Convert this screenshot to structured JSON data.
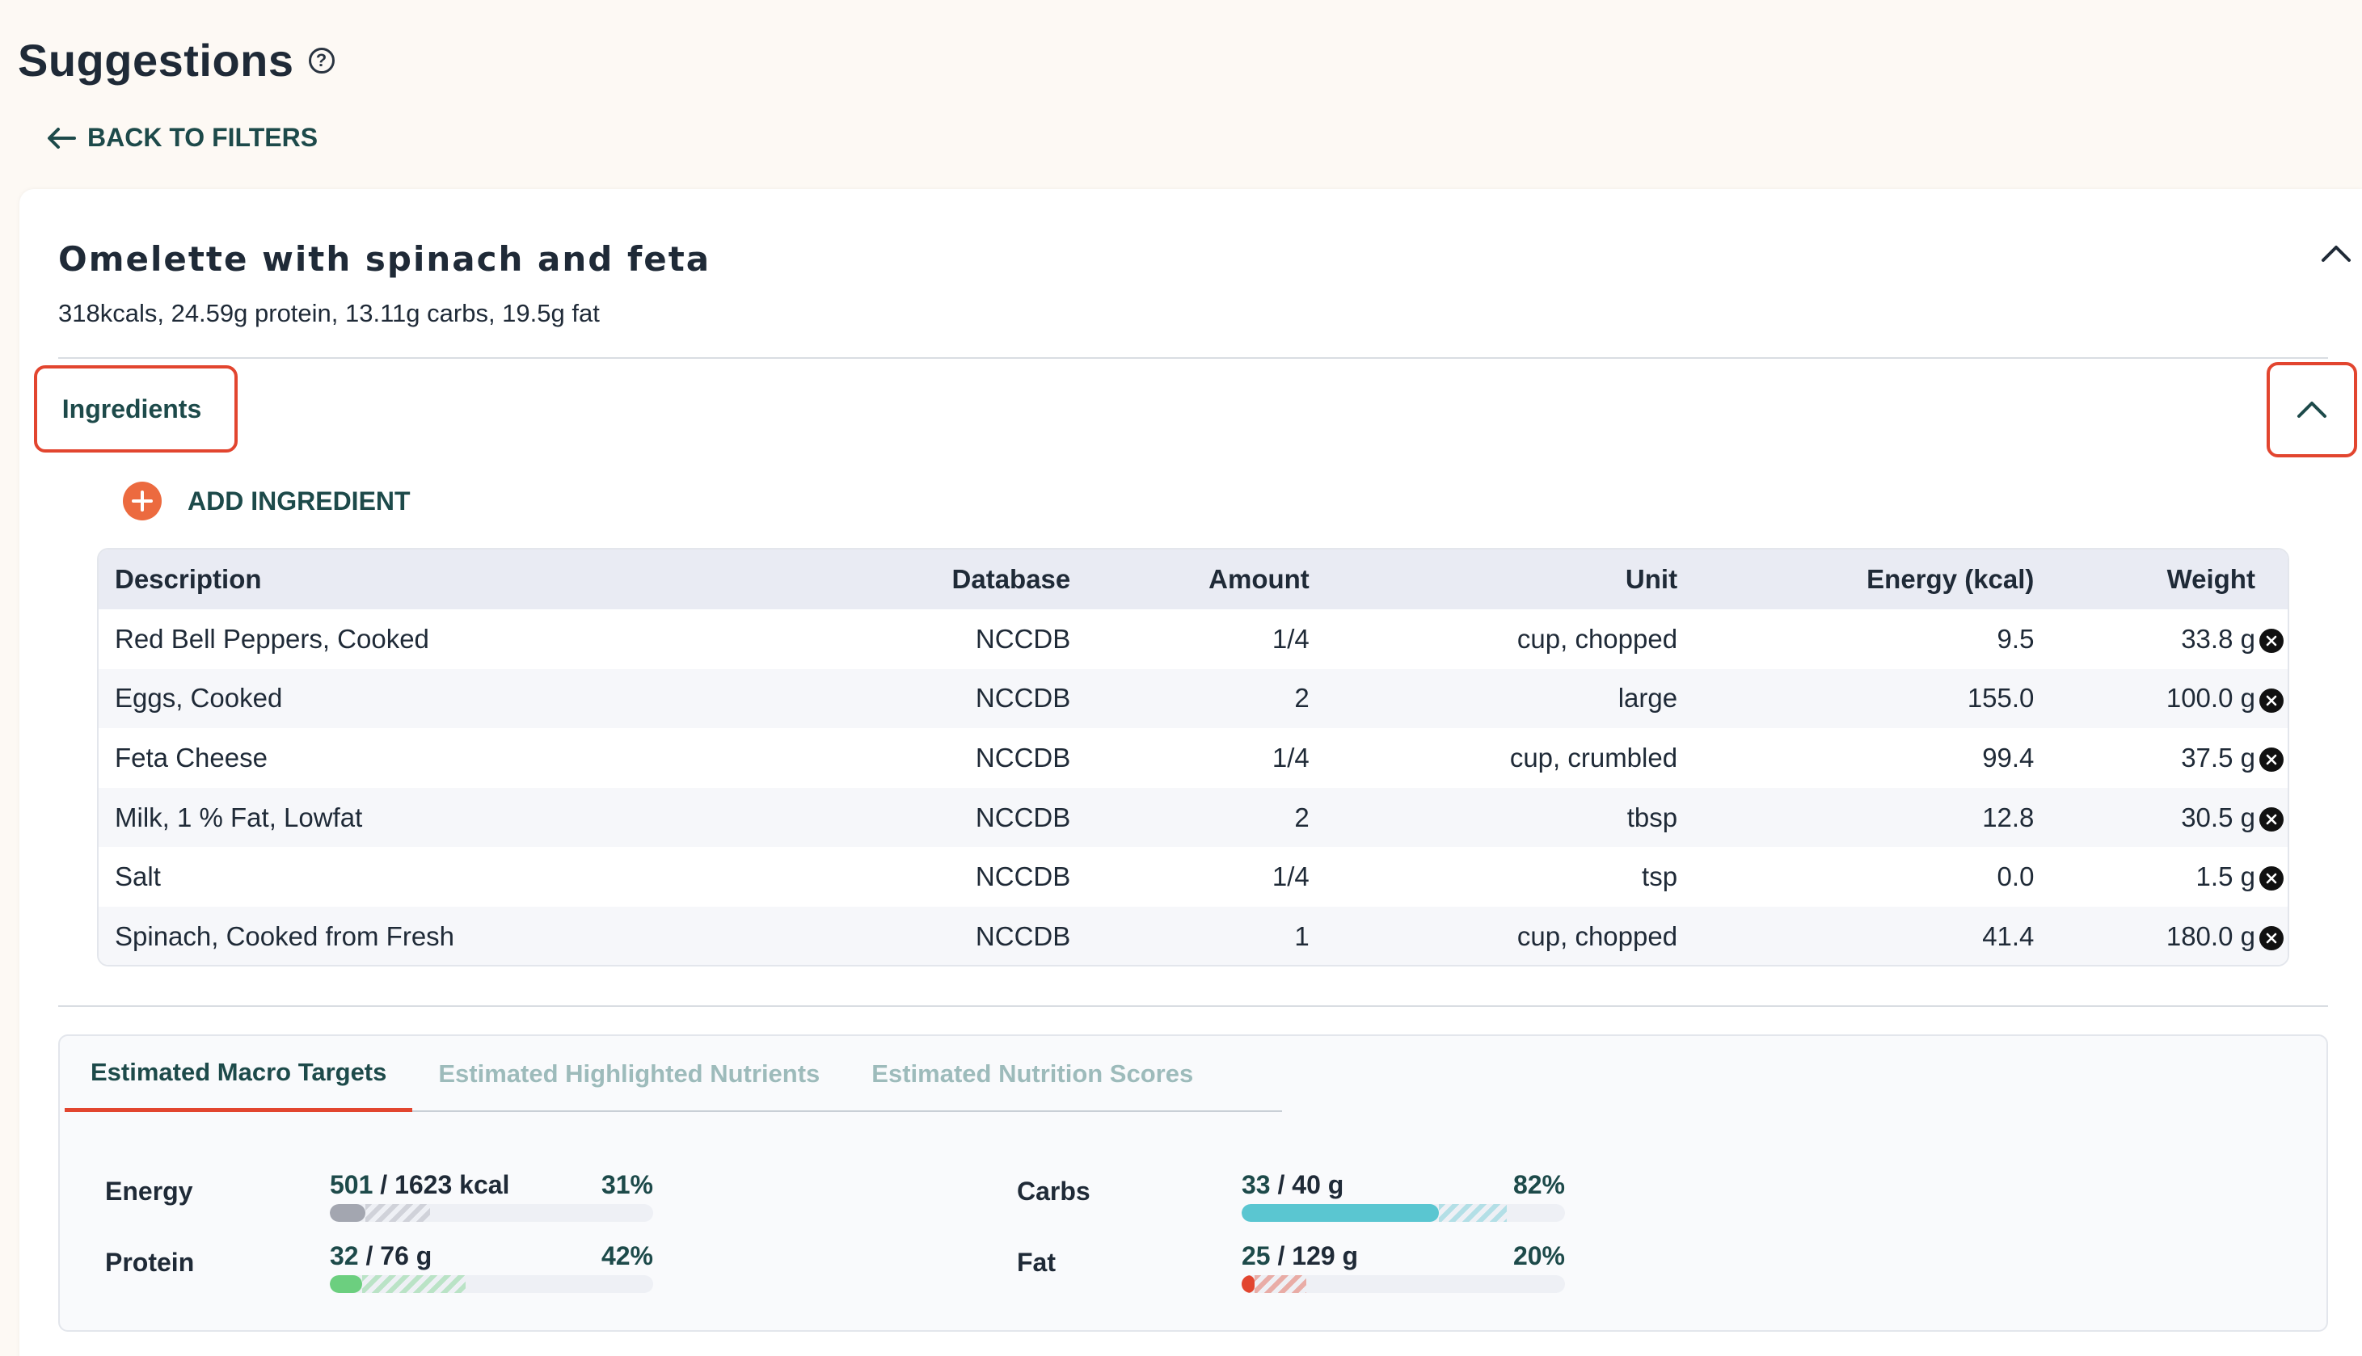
{
  "header": {
    "title": "Suggestions",
    "help_icon": "?",
    "back_label": "BACK TO FILTERS"
  },
  "recipe": {
    "title": "Omelette with spinach and feta",
    "summary": "318kcals, 24.59g protein, 13.11g carbs, 19.5g fat"
  },
  "ingredients_section": {
    "label": "Ingredients",
    "add_label": "ADD INGREDIENT"
  },
  "table": {
    "headers": {
      "description": "Description",
      "database": "Database",
      "amount": "Amount",
      "unit": "Unit",
      "energy": "Energy (kcal)",
      "weight": "Weight"
    },
    "rows": [
      {
        "description": "Red Bell Peppers, Cooked",
        "database": "NCCDB",
        "amount": "1/4",
        "unit": "cup, chopped",
        "energy": "9.5",
        "weight": "33.8 g"
      },
      {
        "description": "Eggs, Cooked",
        "database": "NCCDB",
        "amount": "2",
        "unit": "large",
        "energy": "155.0",
        "weight": "100.0 g"
      },
      {
        "description": "Feta Cheese",
        "database": "NCCDB",
        "amount": "1/4",
        "unit": "cup, crumbled",
        "energy": "99.4",
        "weight": "37.5 g"
      },
      {
        "description": "Milk, 1 % Fat, Lowfat",
        "database": "NCCDB",
        "amount": "2",
        "unit": "tbsp",
        "energy": "12.8",
        "weight": "30.5 g"
      },
      {
        "description": "Salt",
        "database": "NCCDB",
        "amount": "1/4",
        "unit": "tsp",
        "energy": "0.0",
        "weight": "1.5 g"
      },
      {
        "description": "Spinach, Cooked from Fresh",
        "database": "NCCDB",
        "amount": "1",
        "unit": "cup, chopped",
        "energy": "41.4",
        "weight": "180.0 g"
      }
    ]
  },
  "nutrition": {
    "tabs": [
      "Estimated Macro Targets",
      "Estimated Highlighted Nutrients",
      "Estimated Nutrition Scores"
    ],
    "active_tab": 0,
    "macros": {
      "energy": {
        "name": "Energy",
        "current": "501",
        "rest": " / 1623 kcal",
        "pct": "31%",
        "fill": 0.11,
        "projected": 0.31,
        "color": "#a3a6b0"
      },
      "protein": {
        "name": "Protein",
        "current": "32",
        "rest": " / 76 g",
        "pct": "42%",
        "fill": 0.1,
        "projected": 0.42,
        "color": "#6ccf7f"
      },
      "carbs": {
        "name": "Carbs",
        "current": "33",
        "rest": " / 40 g",
        "pct": "82%",
        "fill": 0.61,
        "projected": 0.82,
        "color": "#5ac6d1"
      },
      "fat": {
        "name": "Fat",
        "current": "25",
        "rest": " / 129 g",
        "pct": "20%",
        "fill": 0.04,
        "projected": 0.2,
        "color": "#e2452f"
      }
    }
  },
  "colors": {
    "accent": "#e2452f",
    "brand_dark": "#1d4a4a",
    "add_button": "#ec6a3f"
  }
}
